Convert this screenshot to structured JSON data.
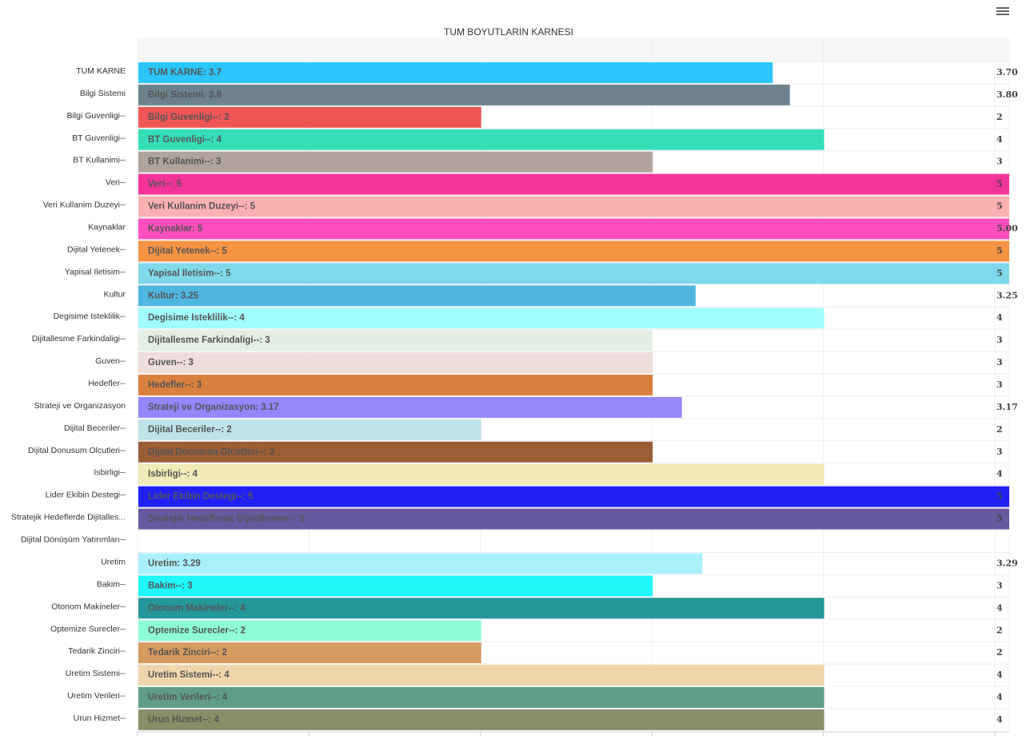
{
  "toolbar": {
    "menu_icon": "hamburger-menu-icon"
  },
  "chart_data": {
    "type": "bar",
    "orientation": "horizontal",
    "title": "TUM BOYUTLARIN KARNESI",
    "xlim": [
      0,
      5
    ],
    "grid": true,
    "legend": "none",
    "categories": [
      "TUM KARNE",
      "Bilgi Sistemi",
      "Bilgi Guvenligi--",
      "BT Guvenligi--",
      "BT Kullanimi--",
      "Veri--",
      "Veri Kullanim Duzeyi--",
      "Kaynaklar",
      "Dijital Yetenek--",
      "Yapisal Iletisim--",
      "Kultur",
      "Degisime Isteklilik--",
      "Dijitallesme Farkindaligi--",
      "Guven--",
      "Hedefler--",
      "Strateji ve Organizasyon",
      "Dijital Beceriler--",
      "Dijital Donusum Olcutleri--",
      "Isbirligi--",
      "Lider Ekibin Destegi--",
      "Stratejik Hedeflerde Dijitalles...",
      "Dijital Dönüşüm Yatırımları--",
      "Uretim",
      "Bakim--",
      "Otonom Makineler--",
      "Optemize Surecler--",
      "Tedarik Zinciri--",
      "Uretim Sistemi--",
      "Uretim Verileri--",
      "Urun Hizmet--"
    ],
    "values": [
      3.7,
      3.8,
      2,
      4,
      3,
      5,
      5,
      5,
      5,
      5,
      3.25,
      4,
      3,
      3,
      3,
      3.17,
      2,
      3,
      4,
      5,
      5,
      null,
      3.29,
      3,
      4,
      2,
      2,
      4,
      4,
      4
    ],
    "bar_labels": [
      "TUM KARNE: 3.7",
      "Bilgi Sistemi: 3.8",
      "Bilgi Guvenligi--: 2",
      "BT Guvenligi--: 4",
      "BT Kullanimi--: 3",
      "Veri--: 5",
      "Veri Kullanim Duzeyi--: 5",
      "Kaynaklar: 5",
      "Dijital Yetenek--: 5",
      "Yapisal Iletisim--: 5",
      "Kultur: 3.25",
      "Degisime Isteklilik--: 4",
      "Dijitallesme Farkindaligi--: 3",
      "Guven--: 3",
      "Hedefler--: 3",
      "Strateji ve Organizasyon: 3.17",
      "Dijital Beceriler--: 2",
      "Dijital Donusum Olcutleri--: 3",
      "Isbirligi--: 4",
      "Lider Ekibin Destegi--: 5",
      "Stratejik Hedeflerde Dijitallesme--: 5",
      "",
      "Uretim: 3.29",
      "Bakim--: 3",
      "Otonom Makineler--: 4",
      "Optemize Surecler--: 2",
      "Tedarik Zinciri--: 2",
      "Uretim Sistemi--: 4",
      "Uretim Verileri--: 4",
      "Urun Hizmet--: 4"
    ],
    "end_labels": [
      "3.70",
      "3.80",
      "2",
      "4",
      "3",
      "5",
      "5",
      "5.00",
      "5",
      "5",
      "3.25",
      "4",
      "3",
      "3",
      "3",
      "3.17",
      "2",
      "3",
      "4",
      "5",
      "5",
      "",
      "3.29",
      "3",
      "4",
      "2",
      "2",
      "4",
      "4",
      "4"
    ],
    "colors": [
      "#2bc6f9",
      "#6e828d",
      "#f05656",
      "#34dfb8",
      "#afa39c",
      "#f2349a",
      "#fbb0b2",
      "#fd4fc0",
      "#f79444",
      "#7fd9ea",
      "#4eb7e1",
      "#a1fdfb",
      "#e3efe5",
      "#efdddb",
      "#da803e",
      "#9486fb",
      "#bee3e9",
      "#9a5e37",
      "#f0ebb8",
      "#2020f4",
      "#66599f",
      "#ffffff",
      "#a9f0fb",
      "#1ff7fb",
      "#24979a",
      "#8efcd6",
      "#d69b5f",
      "#f0d6ac",
      "#619c87",
      "#868f65"
    ]
  }
}
